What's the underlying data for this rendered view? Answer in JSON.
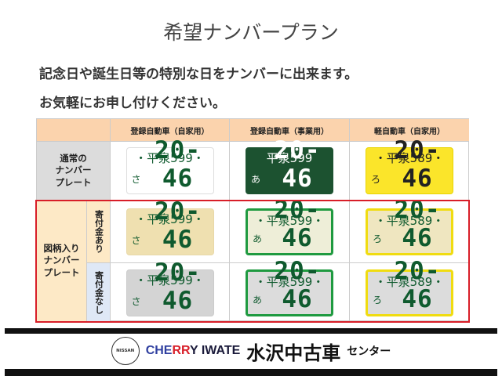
{
  "title": "希望ナンバープラン",
  "lines": [
    "記念日や誕生日等の特別な日をナンバーに出来ます。",
    "お気軽にお申し付けください。"
  ],
  "table": {
    "headers": [
      "登録自動車（自家用）",
      "登録自動車（事業用）",
      "軽自動車（自家用）"
    ],
    "rows": {
      "normal": "通常の\nナンバー\nプレート",
      "design": "図柄入り\nナンバー\nプレート",
      "with_donation": "寄付金あり",
      "without_donation": "寄付金なし"
    },
    "plates": [
      {
        "top": "・平泉599・",
        "kana": "さ",
        "num": "20-46",
        "bg": "#ffffff",
        "fg": "#0f5a2e",
        "border": "#dddddd"
      },
      {
        "top": "平泉599",
        "kana": "あ",
        "num": "20-46",
        "bg": "#1c5230",
        "fg": "#ffffff",
        "border": "#1c5230"
      },
      {
        "top": "・平泉589・",
        "kana": "ろ",
        "num": "20-46",
        "bg": "#fbe52a",
        "fg": "#222222",
        "border": "#e8d400"
      },
      {
        "top": "・平泉599・",
        "kana": "さ",
        "num": "20-46",
        "bg": "#efe0b0",
        "fg": "#0f5a2e",
        "border": "#e8d8a8"
      },
      {
        "top": "・平泉599・",
        "kana": "あ",
        "num": "20-46",
        "bg": "#eeeed8",
        "fg": "#0f5a2e",
        "border": "#1f9a40"
      },
      {
        "top": "・平泉589・",
        "kana": "ろ",
        "num": "20-46",
        "bg": "#efe6c0",
        "fg": "#0f5a2e",
        "border": "#f0dc10"
      },
      {
        "top": "・平泉599・",
        "kana": "さ",
        "num": "20-46",
        "bg": "#d4d4d4",
        "fg": "#0f5a2e",
        "border": "#cccccc"
      },
      {
        "top": "・平泉599・",
        "kana": "あ",
        "num": "20-46",
        "bg": "#dcdcdc",
        "fg": "#0f5a2e",
        "border": "#1f9a40"
      },
      {
        "top": "・平泉589・",
        "kana": "ろ",
        "num": "20-46",
        "bg": "#dcdcdc",
        "fg": "#0f5a2e",
        "border": "#f0dc10"
      }
    ]
  },
  "footer": {
    "nissan": "NISSAN",
    "cherry_a": "CHE",
    "cherry_b": "RR",
    "cherry_c": "Y IWATE",
    "store": "水沢中古車",
    "center": "センター"
  },
  "colors": {
    "accent_red": "#d81e28",
    "header_bg": "#fbd3ad",
    "cherry_blue": "#3040a0"
  }
}
